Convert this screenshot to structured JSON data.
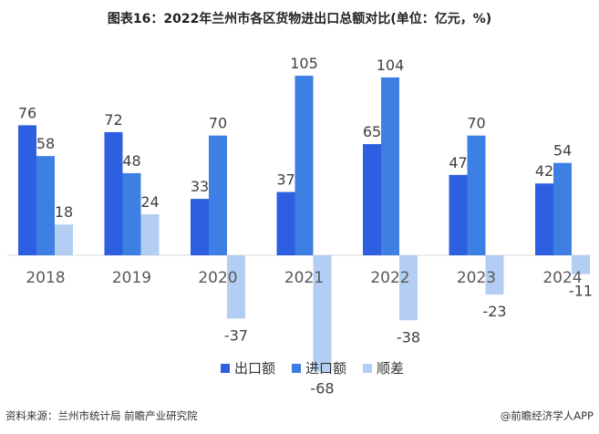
{
  "chart_data": {
    "type": "bar",
    "title": "图表16：2022年兰州市各区货物进出口总额对比(单位：亿元，%)",
    "categories": [
      "2018",
      "2019",
      "2020",
      "2021",
      "2022",
      "2023",
      "2024"
    ],
    "series": [
      {
        "name": "出口额",
        "values": [
          76,
          72,
          33,
          37,
          65,
          47,
          42
        ],
        "color": "#2E5FE0"
      },
      {
        "name": "进口额",
        "values": [
          58,
          48,
          70,
          105,
          104,
          70,
          54
        ],
        "color": "#3D7FE3"
      },
      {
        "name": "顺差",
        "values": [
          18,
          24,
          -37,
          -68,
          -38,
          -23,
          -11
        ],
        "color": "#B4CDF3"
      }
    ],
    "ylim": [
      -68,
      105
    ],
    "grid": false,
    "legend_position": "bottom-right",
    "xlabel": "",
    "ylabel": ""
  },
  "footer": {
    "source": "资料来源：兰州市统计局 前瞻产业研究院",
    "brand": "@前瞻经济学人APP"
  }
}
